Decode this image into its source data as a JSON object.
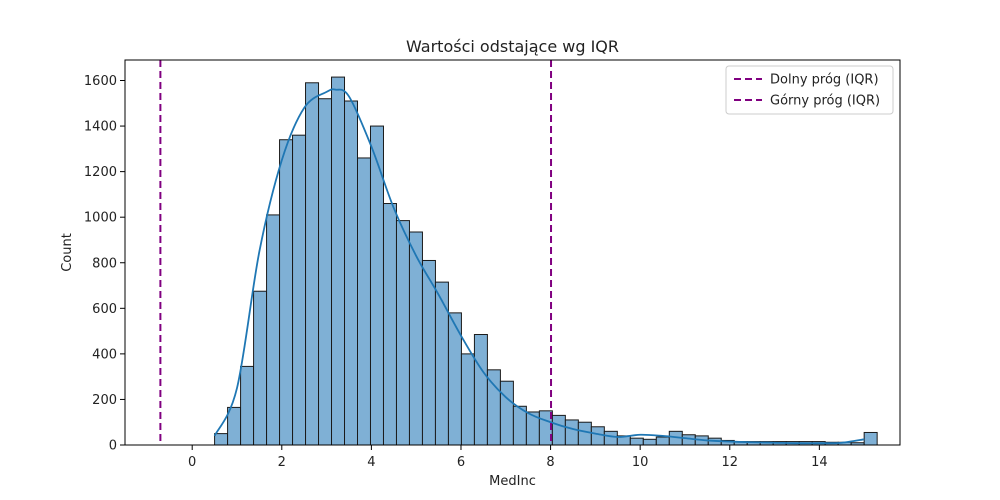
{
  "chart_data": {
    "type": "bar",
    "title": "Wartości odstające wg IQR",
    "xlabel": "MedInc",
    "ylabel": "Count",
    "xlim": [
      -1.5,
      15.8
    ],
    "ylim": [
      0,
      1690
    ],
    "xticks": [
      0,
      2,
      4,
      6,
      8,
      10,
      12,
      14
    ],
    "yticks": [
      0,
      200,
      400,
      600,
      800,
      1000,
      1200,
      1400,
      1600
    ],
    "bin_start": 0.5,
    "bin_width": 0.29,
    "counts": [
      50,
      165,
      345,
      675,
      1010,
      1340,
      1360,
      1590,
      1520,
      1615,
      1510,
      1260,
      1400,
      1060,
      985,
      935,
      810,
      715,
      580,
      400,
      485,
      330,
      280,
      170,
      145,
      150,
      130,
      110,
      100,
      80,
      60,
      40,
      30,
      25,
      35,
      60,
      45,
      40,
      30,
      20,
      15,
      15,
      15,
      15,
      15,
      15,
      15,
      12,
      12,
      10,
      55
    ],
    "kde": {
      "x": [
        0.5,
        1.0,
        1.5,
        2.0,
        2.5,
        3.0,
        3.2,
        3.5,
        4.0,
        4.5,
        5.0,
        5.5,
        6.0,
        6.5,
        7.0,
        7.5,
        8.0,
        8.5,
        9.0,
        9.5,
        10.0,
        10.5,
        11.0,
        11.5,
        12.0,
        12.5,
        13.0,
        13.5,
        14.0,
        14.5,
        15.0
      ],
      "y": [
        40,
        250,
        850,
        1250,
        1480,
        1550,
        1560,
        1530,
        1310,
        1040,
        830,
        660,
        480,
        320,
        210,
        140,
        100,
        70,
        50,
        35,
        45,
        40,
        30,
        20,
        15,
        12,
        10,
        8,
        8,
        10,
        25
      ]
    },
    "lines": [
      {
        "name": "Dolny próg (IQR)",
        "x": -0.71,
        "color": "#800080"
      },
      {
        "name": "Górny próg (IQR)",
        "x": 8.01,
        "color": "#800080"
      }
    ],
    "bar_color": "#7fb0d5",
    "bar_edge": "#1a1a1a",
    "kde_color": "#1f77b4",
    "legend_position": "top-right"
  }
}
